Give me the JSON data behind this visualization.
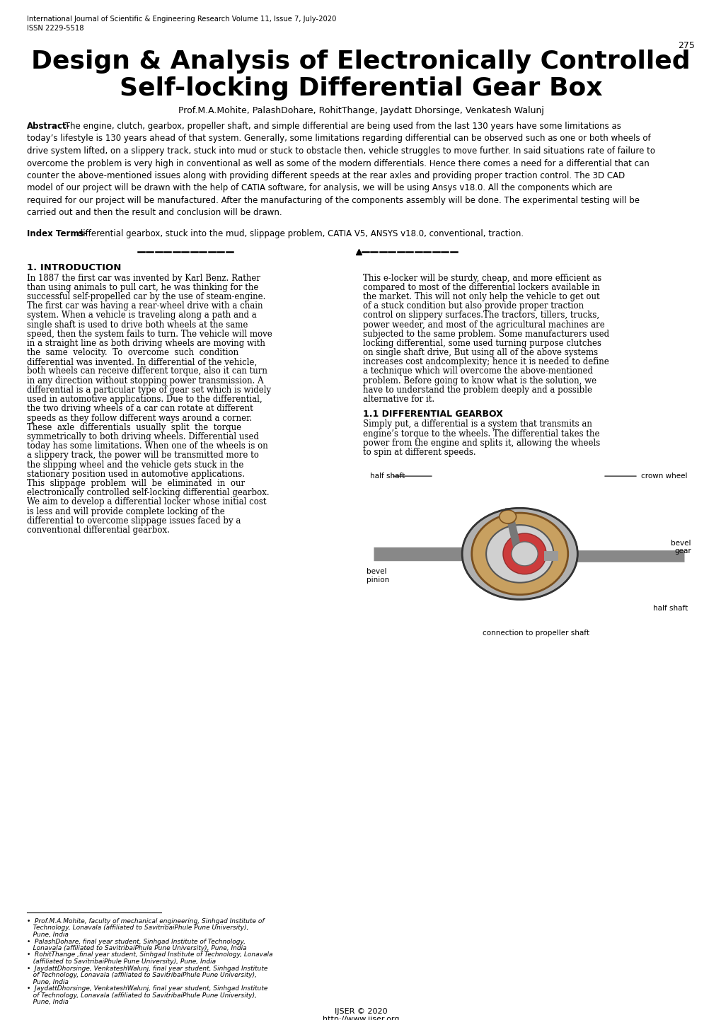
{
  "header_line1": "International Journal of Scientific & Engineering Research Volume 11, Issue 7, July-2020",
  "header_line2": "ISSN 2229-5518",
  "page_number": "275",
  "title_line1": "Design & Analysis of Electronically Controlled",
  "title_line2": "Self-locking Differential Gear Box",
  "authors": "Prof.M.A.Mohite, PalashDohare, RohitThange, Jaydatt Dhorsinge, Venkatesh Walunj",
  "abstract_lines": [
    "The engine, clutch, gearbox, propeller shaft, and simple differential are being used from the last 130 years have some limitations as",
    "today’s lifestyle is 130 years ahead of that system. Generally, some limitations regarding differential can be observed such as one or both wheels of",
    "drive system lifted, on a slippery track, stuck into mud or stuck to obstacle then, vehicle struggles to move further. In said situations rate of failure to",
    "overcome the problem is very high in conventional as well as some of the modern differentials. Hence there comes a need for a differential that can",
    "counter the above-mentioned issues along with providing different speeds at the rear axles and providing proper traction control. The 3D CAD",
    "model of our project will be drawn with the help of CATIA software, for analysis, we will be using Ansys v18.0. All the components which are",
    "required for our project will be manufactured. After the manufacturing of the components assembly will be done. The experimental testing will be",
    "carried out and then the result and conclusion will be drawn."
  ],
  "index_text": "differential gearbox, stuck into the mud, slippage problem, CATIA V5, ANSYS v18.0, conventional, traction.",
  "col1_lines": [
    "In 1887 the first car was invented by Karl Benz. Rather",
    "than using animals to pull cart, he was thinking for the",
    "successful self-propelled car by the use of steam-engine.",
    "The first car was having a rear-wheel drive with a chain",
    "system. When a vehicle is traveling along a path and a",
    "single shaft is used to drive both wheels at the same",
    "speed, then the system fails to turn. The vehicle will move",
    "in a straight line as both driving wheels are moving with",
    "the  same  velocity.  To  overcome  such  condition",
    "differential was invented. In differential of the vehicle,",
    "both wheels can receive different torque, also it can turn",
    "in any direction without stopping power transmission. A",
    "differential is a particular type of gear set which is widely",
    "used in automotive applications. Due to the differential,",
    "the two driving wheels of a car can rotate at different",
    "speeds as they follow different ways around a corner.",
    "These  axle  differentials  usually  split  the  torque",
    "symmetrically to both driving wheels. Differential used",
    "today has some limitations. When one of the wheels is on",
    "a slippery track, the power will be transmitted more to",
    "the slipping wheel and the vehicle gets stuck in the",
    "stationary position used in automotive applications.",
    "This  slippage  problem  will  be  eliminated  in  our",
    "electronically controlled self-locking differential gearbox.",
    "We aim to develop a differential locker whose initial cost",
    "is less and will provide complete locking of the",
    "differential to overcome slippage issues faced by a"
  ],
  "col1_last": "conventional differential gearbox.",
  "col2_lines": [
    "This e-locker will be sturdy, cheap, and more efficient as",
    "compared to most of the differential lockers available in",
    "the market. This will not only help the vehicle to get out",
    "of a stuck condition but also provide proper traction",
    "control on slippery surfaces.The tractors, tillers, trucks,",
    "power weeder, and most of the agricultural machines are",
    "subjected to the same problem. Some manufacturers used",
    "locking differential, some used turning purpose clutches",
    "on single shaft drive, But using all of the above systems",
    "increases cost andcomplexity; hence it is needed to define",
    "a technique which will overcome the above-mentioned",
    "problem. Before going to know what is the solution, we",
    "have to understand the problem deeply and a possible",
    "alternative for it."
  ],
  "diff_lines": [
    "Simply put, a differential is a system that transmits an",
    "engine’s torque to the wheels. The differential takes the",
    "power from the engine and splits it, allowing the wheels",
    "to spin at different speeds."
  ],
  "footnote_lines": [
    "•  Prof.M.A.Mohite, faculty of mechanical engineering, Sinhgad Institute of",
    "   Technology, Lonavala (affiliated to SavitribaiPhule Pune University),",
    "   Pune, India",
    "•  PalashDohare, final year student, Sinhgad Institute of Technology,",
    "   Lonavala (affiliated to SavitribaiPhule Pune University), Pune, India",
    "•  RohitThange ,final year student, Sinhgad Institute of Technology, Lonavala",
    "   (affiliated to SavitribaiPhule Pune University), Pune, India",
    "•  JaydattDhorsinge, VenkateshWalunj, final year student, Sinhgad Institute",
    "   of Technology, Lonavala (affiliated to SavitribaiPhule Pune University),",
    "   Pune, India",
    "•  JaydattDhorsinge, VenkateshWalunj, final year student, Sinhgad Institute",
    "   of Technology, Lonavala (affiliated to SavitribaiPhule Pune University),",
    "   Pune, India"
  ],
  "footer1": "IJSER © 2020",
  "footer2": "http://www.ijser.org",
  "bg_color": "#ffffff"
}
